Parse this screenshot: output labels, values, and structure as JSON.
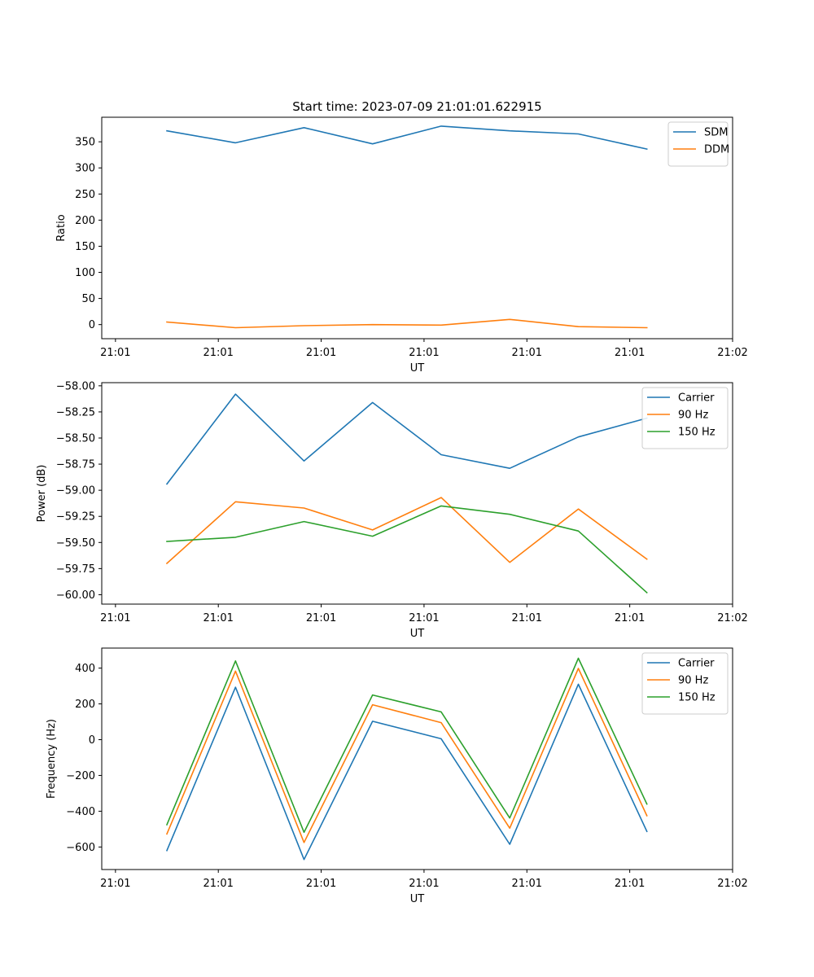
{
  "figure": {
    "title": "Start time: 2023-07-09 21:01:01.622915"
  },
  "chart_data": [
    {
      "type": "line",
      "title": "Start time: 2023-07-09 21:01:01.622915",
      "xlabel": "UT",
      "ylabel": "Ratio",
      "x_index": [
        0,
        1,
        2,
        3,
        4,
        5,
        6,
        7
      ],
      "x_tick_positions": [
        -0.75,
        0.75,
        2.25,
        3.75,
        5.25,
        6.75
      ],
      "x_tick_labels": [
        "21:01",
        "21:01",
        "21:01",
        "21:01",
        "21:01",
        "21:01",
        "21:02"
      ],
      "x_tick_label_positions": [
        -0.75,
        0.75,
        2.25,
        3.75,
        5.25,
        6.75,
        8.25
      ],
      "xlim": [
        -0.95,
        8.25
      ],
      "ylim": [
        -27,
        397
      ],
      "y_ticks": [
        0,
        50,
        100,
        150,
        200,
        250,
        300,
        350
      ],
      "y_tick_labels": [
        "0",
        "50",
        "100",
        "150",
        "200",
        "250",
        "300",
        "350"
      ],
      "legend": "top-right",
      "series": [
        {
          "name": "SDM",
          "color": "#1f77b4",
          "values": [
            371,
            348,
            377,
            346,
            380,
            371,
            365,
            336
          ]
        },
        {
          "name": "DDM",
          "color": "#ff7f0e",
          "values": [
            5,
            -6,
            -2,
            0,
            -1,
            10,
            -4,
            -6
          ]
        }
      ]
    },
    {
      "type": "line",
      "title": "",
      "xlabel": "UT",
      "ylabel": "Power (dB)",
      "x_index": [
        0,
        1,
        2,
        3,
        4,
        5,
        6,
        7
      ],
      "x_tick_labels": [
        "21:01",
        "21:01",
        "21:01",
        "21:01",
        "21:01",
        "21:01",
        "21:02"
      ],
      "x_tick_label_positions": [
        -0.75,
        0.75,
        2.25,
        3.75,
        5.25,
        6.75,
        8.25
      ],
      "xlim": [
        -0.95,
        8.25
      ],
      "ylim": [
        -60.09,
        -57.97
      ],
      "y_ticks": [
        -60.0,
        -59.75,
        -59.5,
        -59.25,
        -59.0,
        -58.75,
        -58.5,
        -58.25,
        -58.0
      ],
      "y_tick_labels": [
        "−60.00",
        "−59.75",
        "−59.50",
        "−59.25",
        "−59.00",
        "−58.75",
        "−58.50",
        "−58.25",
        "−58.00"
      ],
      "legend": "top-right",
      "series": [
        {
          "name": "Carrier",
          "color": "#1f77b4",
          "values": [
            -58.94,
            -58.08,
            -58.72,
            -58.16,
            -58.66,
            -58.79,
            -58.49,
            -58.31
          ]
        },
        {
          "name": "90 Hz",
          "color": "#ff7f0e",
          "values": [
            -59.7,
            -59.11,
            -59.17,
            -59.38,
            -59.07,
            -59.69,
            -59.18,
            -59.66
          ]
        },
        {
          "name": "150 Hz",
          "color": "#2ca02c",
          "values": [
            -59.49,
            -59.45,
            -59.3,
            -59.44,
            -59.15,
            -59.23,
            -59.39,
            -59.98
          ]
        }
      ]
    },
    {
      "type": "line",
      "title": "",
      "xlabel": "UT",
      "ylabel": "Frequency (Hz)",
      "x_index": [
        0,
        1,
        2,
        3,
        4,
        5,
        6,
        7
      ],
      "x_tick_labels": [
        "21:01",
        "21:01",
        "21:01",
        "21:01",
        "21:01",
        "21:01",
        "21:02"
      ],
      "x_tick_label_positions": [
        -0.75,
        0.75,
        2.25,
        3.75,
        5.25,
        6.75,
        8.25
      ],
      "xlim": [
        -0.95,
        8.25
      ],
      "ylim": [
        -726,
        512
      ],
      "y_ticks": [
        -600,
        -400,
        -200,
        0,
        200,
        400
      ],
      "y_tick_labels": [
        "−600",
        "−400",
        "−200",
        "0",
        "200",
        "400"
      ],
      "legend": "top-right",
      "series": [
        {
          "name": "Carrier",
          "color": "#1f77b4",
          "values": [
            -620,
            293,
            -670,
            103,
            5,
            -585,
            310,
            -513
          ]
        },
        {
          "name": "90 Hz",
          "color": "#ff7f0e",
          "values": [
            -527,
            383,
            -575,
            195,
            95,
            -495,
            398,
            -425
          ]
        },
        {
          "name": "150 Hz",
          "color": "#2ca02c",
          "values": [
            -475,
            440,
            -518,
            250,
            155,
            -438,
            455,
            -360
          ]
        }
      ]
    }
  ]
}
